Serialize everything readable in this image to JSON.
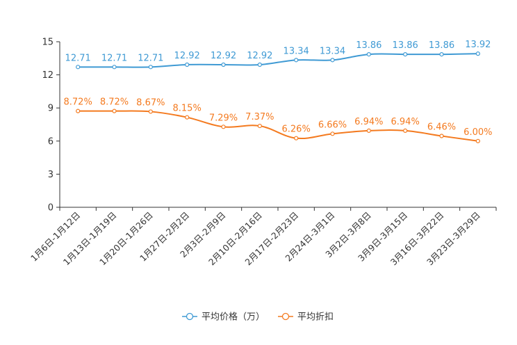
{
  "chart_data": {
    "type": "line",
    "categories": [
      "1月6日-1月12日",
      "1月13日-1月19日",
      "1月20日-1月26日",
      "1月27日-2月2日",
      "2月3日-2月9日",
      "2月10日-2月16日",
      "2月17日-2月23日",
      "2月24日-3月1日",
      "3月2日-3月8日",
      "3月9日-3月15日",
      "3月16日-3月22日",
      "3月23日-3月29日"
    ],
    "ylim": [
      0,
      15
    ],
    "yticks": [
      0,
      3,
      6,
      9,
      12,
      15
    ],
    "ytick_labels": [
      "0",
      "3",
      "6",
      "9",
      "12",
      "15"
    ],
    "series": [
      {
        "name": "平均价格（万）",
        "color": "#3f9ad4",
        "values": [
          12.71,
          12.71,
          12.71,
          12.92,
          12.92,
          12.92,
          13.34,
          13.34,
          13.86,
          13.86,
          13.86,
          13.92
        ],
        "labels": [
          "12.71",
          "12.71",
          "12.71",
          "12.92",
          "12.92",
          "12.92",
          "13.34",
          "13.34",
          "13.86",
          "13.86",
          "13.86",
          "13.92"
        ]
      },
      {
        "name": "平均折扣",
        "color": "#f47a1f",
        "values": [
          8.72,
          8.72,
          8.67,
          8.15,
          7.29,
          7.37,
          6.26,
          6.66,
          6.94,
          6.94,
          6.46,
          6.0
        ],
        "labels": [
          "8.72%",
          "8.72%",
          "8.67%",
          "8.15%",
          "7.29%",
          "7.37%",
          "6.26%",
          "6.66%",
          "6.94%",
          "6.94%",
          "6.46%",
          "6.00%"
        ]
      }
    ],
    "legend_position": "bottom-center"
  }
}
